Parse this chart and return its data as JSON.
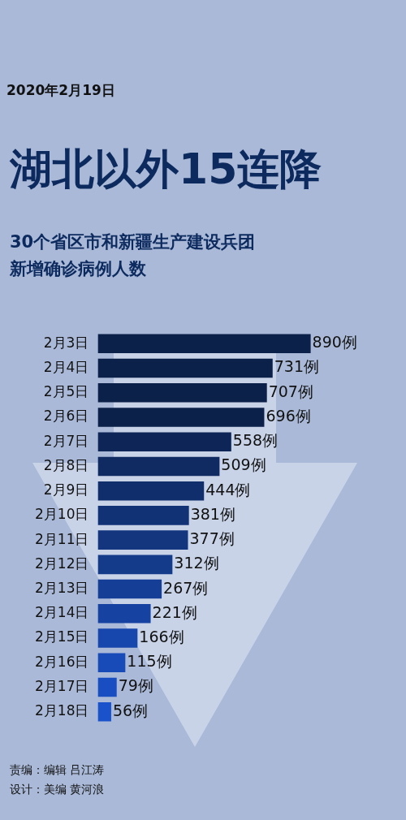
{
  "chart_data": {
    "type": "bar",
    "orientation": "horizontal",
    "title": "湖北以外15连降",
    "subtitle": "30个省区市和新疆生产建设兵团新增确诊病例人数",
    "categories": [
      "2月3日",
      "2月4日",
      "2月5日",
      "2月6日",
      "2月7日",
      "2月8日",
      "2月9日",
      "2月10日",
      "2月11日",
      "2月12日",
      "2月13日",
      "2月14日",
      "2月15日",
      "2月16日",
      "2月17日",
      "2月18日"
    ],
    "values": [
      890,
      731,
      707,
      696,
      558,
      509,
      444,
      381,
      377,
      312,
      267,
      221,
      166,
      115,
      79,
      56
    ],
    "value_labels": [
      "890例",
      "731例",
      "707例",
      "696例",
      "558例",
      "509例",
      "444例",
      "381例",
      "377例",
      "312例",
      "267例",
      "221例",
      "166例",
      "115例",
      "79例",
      "56例"
    ],
    "colors": [
      "#0c2149",
      "#0c2149",
      "#0c2149",
      "#0c2149",
      "#0e2657",
      "#102a62",
      "#112e6c",
      "#123276",
      "#13367f",
      "#143a8a",
      "#153e96",
      "#1642a2",
      "#1746ad",
      "#184ab8",
      "#194ec2",
      "#1a52cc"
    ],
    "tick_labels": "y",
    "annotations": [
      "2020年2月19日",
      "责编：编辑 吕江涛",
      "设计：美编 黄河浪"
    ]
  }
}
